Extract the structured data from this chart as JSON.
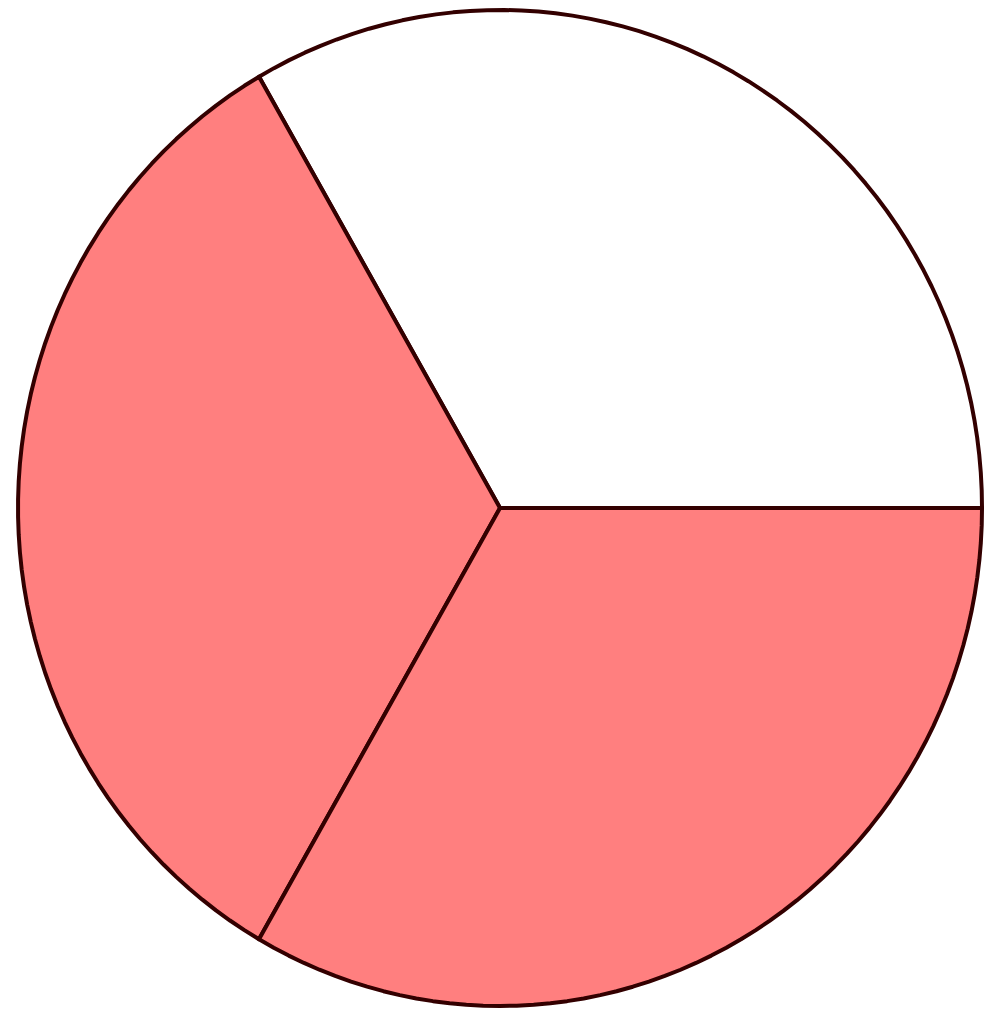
{
  "chart_data": {
    "type": "pie",
    "categories": [
      null,
      null,
      null
    ],
    "values": [
      33.333,
      33.333,
      33.334
    ],
    "colors": [
      "#ffffff",
      "#ff7f7f",
      "#ff7f7f"
    ]
  }
}
